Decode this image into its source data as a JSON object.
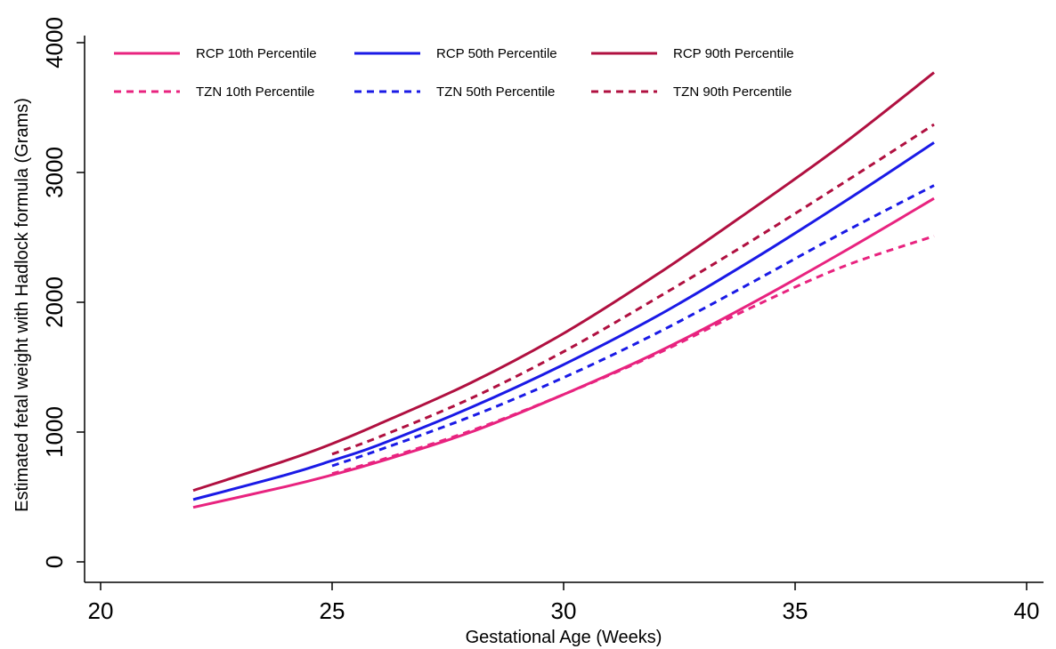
{
  "chart_data": {
    "type": "line",
    "xlabel": "Gestational Age (Weeks)",
    "ylabel": "Estimated fetal weight with Hadlock formula (Grams)",
    "xlim": [
      20,
      40
    ],
    "ylim": [
      0,
      4000
    ],
    "x_ticks": [
      "20",
      "25",
      "30",
      "35",
      "40"
    ],
    "y_ticks": [
      "0",
      "1000",
      "2000",
      "3000",
      "4000"
    ],
    "grid": false,
    "legend_position": "top",
    "colors": {
      "p10": "#e8237f",
      "p50": "#1a1ae6",
      "p90": "#b01040"
    },
    "series": [
      {
        "name": "RCP 10th Percentile",
        "color": "#e8237f",
        "dash": "solid",
        "x": [
          22,
          24,
          25,
          26,
          28,
          30,
          32,
          34,
          36,
          38
        ],
        "y": [
          420,
          580,
          670,
          770,
          1000,
          1290,
          1610,
          1980,
          2380,
          2800
        ]
      },
      {
        "name": "RCP 50th Percentile",
        "color": "#1a1ae6",
        "dash": "solid",
        "x": [
          22,
          24,
          25,
          26,
          28,
          30,
          32,
          34,
          36,
          38
        ],
        "y": [
          480,
          670,
          780,
          900,
          1190,
          1520,
          1890,
          2310,
          2760,
          3230
        ]
      },
      {
        "name": "RCP 90th Percentile",
        "color": "#b01040",
        "dash": "solid",
        "x": [
          22,
          24,
          25,
          26,
          28,
          30,
          32,
          34,
          36,
          38
        ],
        "y": [
          550,
          780,
          910,
          1060,
          1380,
          1760,
          2210,
          2700,
          3210,
          3770
        ]
      },
      {
        "name": "TZN 10th Percentile",
        "color": "#e8237f",
        "dash": "dashed",
        "x": [
          25,
          26,
          28,
          30,
          32,
          34,
          36,
          38
        ],
        "y": [
          680,
          780,
          1010,
          1290,
          1600,
          1950,
          2270,
          2510
        ]
      },
      {
        "name": "TZN 50th Percentile",
        "color": "#1a1ae6",
        "dash": "dashed",
        "x": [
          25,
          26,
          28,
          30,
          32,
          34,
          36,
          38
        ],
        "y": [
          740,
          860,
          1120,
          1420,
          1760,
          2140,
          2530,
          2900
        ]
      },
      {
        "name": "TZN 90th Percentile",
        "color": "#b01040",
        "dash": "dashed",
        "x": [
          25,
          26,
          28,
          30,
          32,
          34,
          36,
          38
        ],
        "y": [
          830,
          960,
          1260,
          1620,
          2030,
          2460,
          2910,
          3370
        ]
      }
    ]
  }
}
